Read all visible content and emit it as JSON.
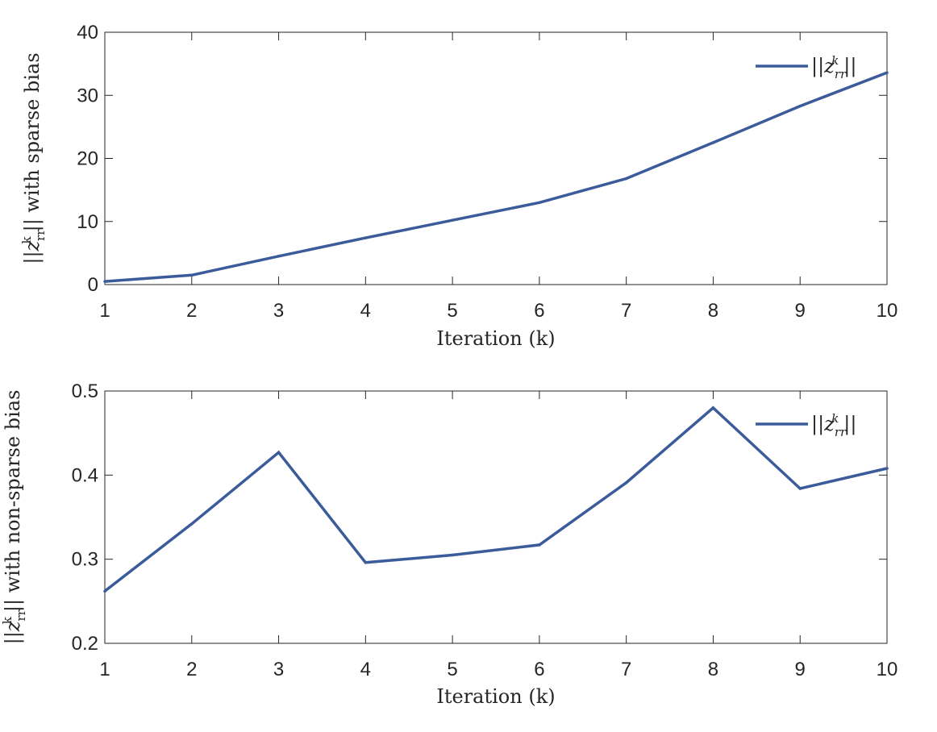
{
  "line_color": "#3b5b9a",
  "chart_data": [
    {
      "type": "line",
      "x": [
        1,
        2,
        3,
        4,
        5,
        6,
        7,
        8,
        9,
        10
      ],
      "series": [
        {
          "name": "||z_rr^k||",
          "values": [
            0.5,
            1.5,
            4.5,
            7.4,
            10.2,
            13.0,
            16.8,
            22.5,
            28.3,
            33.6
          ]
        }
      ],
      "xlim": [
        1,
        10
      ],
      "ylim": [
        0,
        40
      ],
      "xticks": [
        1,
        2,
        3,
        4,
        5,
        6,
        7,
        8,
        9,
        10
      ],
      "yticks": [
        0,
        10,
        20,
        30,
        40
      ],
      "xlabel": "Iteration (k)",
      "ylabel": "||z_rr^k|| with sparse bias",
      "ylabel_parts": {
        "pre": "||",
        "var": "z",
        "sub": "rr",
        "sup": "k",
        "post": "|| with sparse bias"
      },
      "legend_parts": {
        "pre": "||",
        "var": "z",
        "sub": "rr",
        "sup": "k",
        "post": "||"
      },
      "legend_position": "top-right",
      "grid": false
    },
    {
      "type": "line",
      "x": [
        1,
        2,
        3,
        4,
        5,
        6,
        7,
        8,
        9,
        10
      ],
      "series": [
        {
          "name": "||z_rr^k||",
          "values": [
            0.262,
            0.342,
            0.427,
            0.296,
            0.305,
            0.317,
            0.391,
            0.48,
            0.384,
            0.408
          ]
        }
      ],
      "xlim": [
        1,
        10
      ],
      "ylim": [
        0.2,
        0.5
      ],
      "xticks": [
        1,
        2,
        3,
        4,
        5,
        6,
        7,
        8,
        9,
        10
      ],
      "yticks": [
        0.2,
        0.3,
        0.4,
        0.5
      ],
      "xlabel": "Iteration (k)",
      "ylabel": "||z_rr^k|| with non-sparse bias",
      "ylabel_parts": {
        "pre": "||",
        "var": "z",
        "sub": "rr",
        "sup": "k",
        "post": "|| with non-sparse bias"
      },
      "legend_parts": {
        "pre": "||",
        "var": "z",
        "sub": "rr",
        "sup": "k",
        "post": "||"
      },
      "legend_position": "top-right",
      "grid": false
    }
  ]
}
